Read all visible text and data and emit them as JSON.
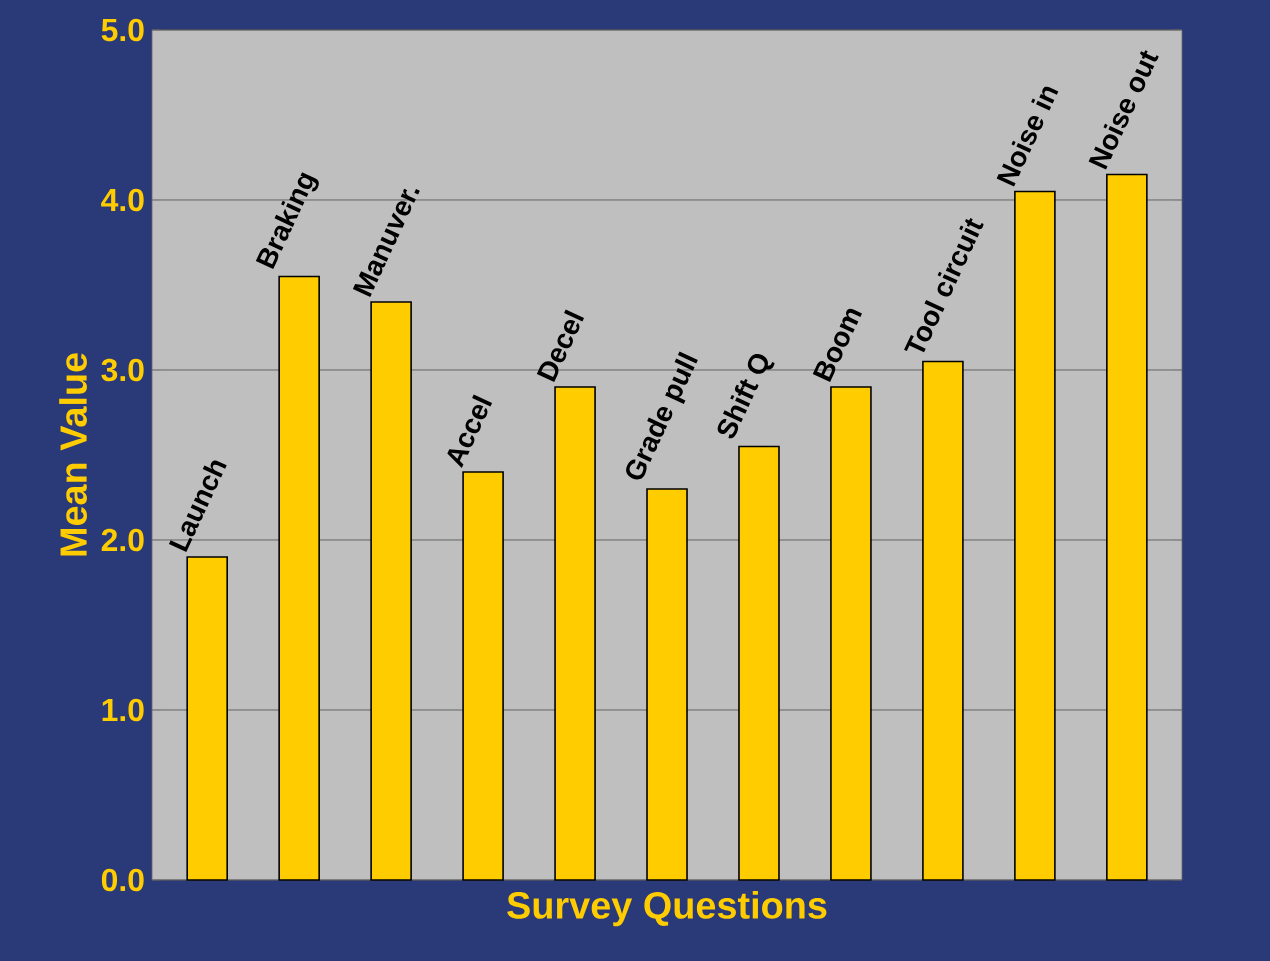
{
  "chart_data": {
    "type": "bar",
    "xlabel": "Survey Questions",
    "ylabel": "Mean Value",
    "categories": [
      "Launch",
      "Braking",
      "Manuver.",
      "Accel",
      "Decel",
      "Grade pull",
      "Shift Q",
      "Boom",
      "Tool circuit",
      "Noise in",
      "Noise out"
    ],
    "values": [
      1.9,
      3.55,
      3.4,
      2.4,
      2.9,
      2.3,
      2.55,
      2.9,
      3.05,
      4.05,
      4.15
    ],
    "color": "#ffcc00",
    "ylim": [
      0,
      5
    ],
    "yticks": [
      {
        "value": 0,
        "label": "0.0"
      },
      {
        "value": 1,
        "label": "1.0"
      },
      {
        "value": 2,
        "label": "2.0"
      },
      {
        "value": 3,
        "label": "3.0"
      },
      {
        "value": 4,
        "label": "4.0"
      },
      {
        "value": 5,
        "label": "5.0"
      }
    ],
    "grid": "y"
  }
}
